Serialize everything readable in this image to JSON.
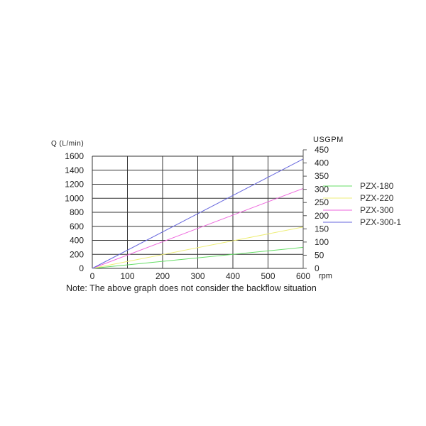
{
  "chart_data": {
    "type": "line",
    "xlabel": "rpm",
    "ylabel": "Q (L/min)",
    "y2label": "USGPM",
    "xlim": [
      0,
      600
    ],
    "ylim": [
      0,
      1600
    ],
    "y2lim": [
      0,
      450
    ],
    "x_ticks": [
      0,
      100,
      200,
      300,
      400,
      500,
      600
    ],
    "y_ticks": [
      0,
      200,
      400,
      600,
      800,
      1000,
      1200,
      1400,
      1600
    ],
    "y2_ticks": [
      0,
      50,
      100,
      150,
      200,
      250,
      300,
      350,
      400,
      450
    ],
    "grid": true,
    "legend_position": "right",
    "series": [
      {
        "name": "PZX-180",
        "color": "#66dd66",
        "x": [
          0,
          600
        ],
        "y": [
          0,
          300
        ]
      },
      {
        "name": "PZX-220",
        "color": "#eeee77",
        "x": [
          0,
          600
        ],
        "y": [
          0,
          590
        ]
      },
      {
        "name": "PZX-300",
        "color": "#ee66dd",
        "x": [
          0,
          600
        ],
        "y": [
          0,
          1140
        ]
      },
      {
        "name": "PZX-300-1",
        "color": "#6666dd",
        "x": [
          0,
          600
        ],
        "y": [
          0,
          1560
        ]
      }
    ]
  },
  "note": "Note: The above graph does not consider the backflow situation"
}
